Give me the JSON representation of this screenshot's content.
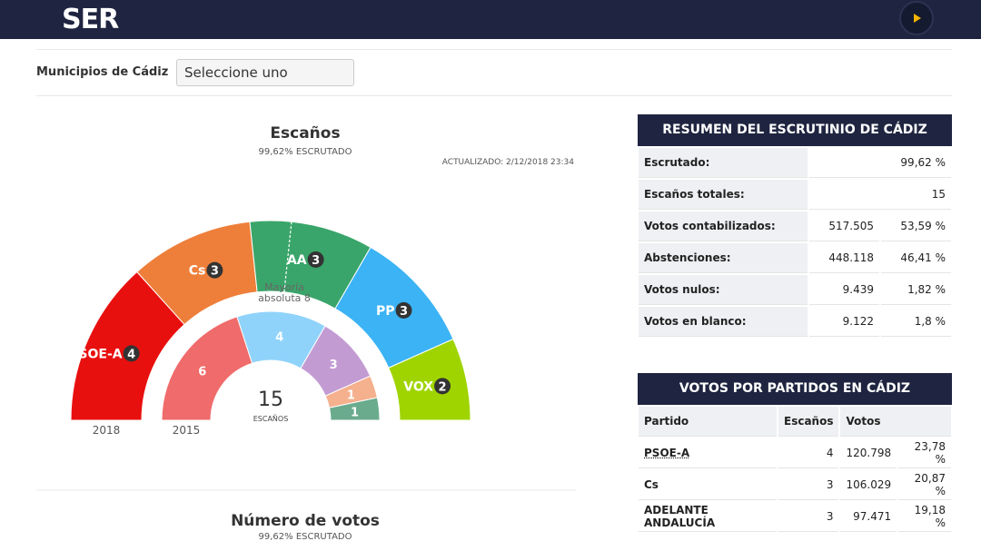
{
  "header": {
    "logo": "SER"
  },
  "filter": {
    "label": "Municipios de Cádiz",
    "placeholder": "Seleccione uno"
  },
  "seats_chart": {
    "title": "Escaños",
    "subtitle": "99,62% ESCRUTADO",
    "updated": "ACTUALIZADO: 2/12/2018 23:34",
    "total": 15,
    "total_label": "ESCAÑOS",
    "majority": 8,
    "majority_label": "Mayoría absoluta 8",
    "rings": [
      {
        "name": "2018",
        "labels": [
          "PSOE-A",
          "Cs",
          "AA",
          "PP",
          "VOX"
        ],
        "values": [
          4,
          3,
          3,
          3,
          2
        ],
        "colors": [
          "#e8100f",
          "#ee7f3a",
          "#3aa56a",
          "#3bb3f5",
          "#9fd400"
        ]
      },
      {
        "name": "2015",
        "values": [
          6,
          4,
          3,
          1,
          1
        ],
        "colors": [
          "#f06b6b",
          "#8fd3fb",
          "#c39bd3",
          "#f5b08d",
          "#6aab8e"
        ]
      }
    ]
  },
  "votes_chart": {
    "title": "Número de votos",
    "subtitle": "99,62% ESCRUTADO"
  },
  "summary": {
    "title": "RESUMEN DEL ESCRUTINIO DE CÁDIZ",
    "rows": [
      [
        "Escrutado:",
        "99,62 %"
      ],
      [
        "Escaños totales:",
        "15"
      ],
      [
        "Votos contabilizados:",
        "517.505",
        "53,59 %"
      ],
      [
        "Abstenciones:",
        "448.118",
        "46,41 %"
      ],
      [
        "Votos nulos:",
        "9.439",
        "1,82 %"
      ],
      [
        "Votos en blanco:",
        "9.122",
        "1,8 %"
      ]
    ]
  },
  "party_table": {
    "title": "VOTOS POR PARTIDOS EN CÁDIZ",
    "columns": [
      "Partido",
      "Escaños",
      "Votos"
    ],
    "rows": [
      [
        "PSOE-A",
        "4",
        "120.798",
        "23,78 %"
      ],
      [
        "Cs",
        "3",
        "106.029",
        "20,87 %"
      ],
      [
        "ADELANTE ANDALUCÍA",
        "3",
        "97.471",
        "19,18 %"
      ]
    ]
  }
}
